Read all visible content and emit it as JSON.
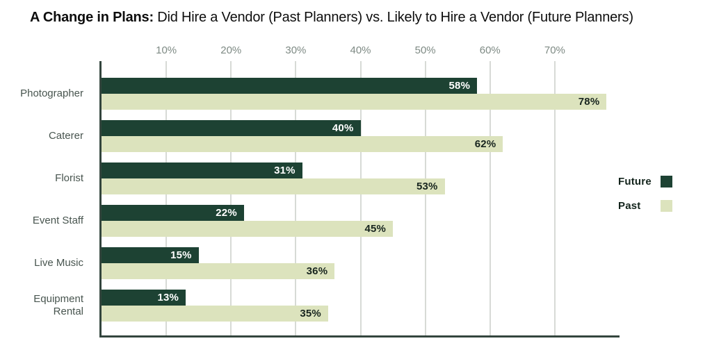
{
  "title": {
    "bold": "A Change in Plans:",
    "rest": " Did Hire a Vendor (Past Planners) vs. Likely to Hire a Vendor (Future Planners)"
  },
  "chart_data": {
    "type": "bar",
    "orientation": "horizontal",
    "title": "A Change in Plans: Did Hire a Vendor (Past Planners) vs. Likely to Hire a Vendor (Future Planners)",
    "categories": [
      "Photographer",
      "Caterer",
      "Florist",
      "Event Staff",
      "Live Music",
      "Equipment Rental"
    ],
    "series": [
      {
        "name": "Future",
        "color": "#1d4233",
        "label_color": "#ffffff",
        "values": [
          58,
          40,
          31,
          22,
          15,
          13
        ]
      },
      {
        "name": "Past",
        "color": "#dce3bd",
        "label_color": "#18251f",
        "values": [
          78,
          62,
          53,
          45,
          36,
          35
        ]
      }
    ],
    "x_ticks": [
      "10%",
      "20%",
      "30%",
      "40%",
      "50%",
      "60%",
      "70%"
    ],
    "xlim": [
      0,
      80
    ],
    "value_label_format": "{v}%",
    "grid": true,
    "legend_position": "right"
  },
  "legend": {
    "items": [
      {
        "label": "Future",
        "color": "#1d4233"
      },
      {
        "label": "Past",
        "color": "#dce3bd"
      }
    ]
  },
  "colors": {
    "future_bar": "#1d4233",
    "past_bar": "#dce3bd",
    "axis_line": "#33453d",
    "gridline": "#d7dad6",
    "tick_text": "#7e8a84",
    "category_text": "#48554f",
    "title_text": "#0d0d0d"
  }
}
